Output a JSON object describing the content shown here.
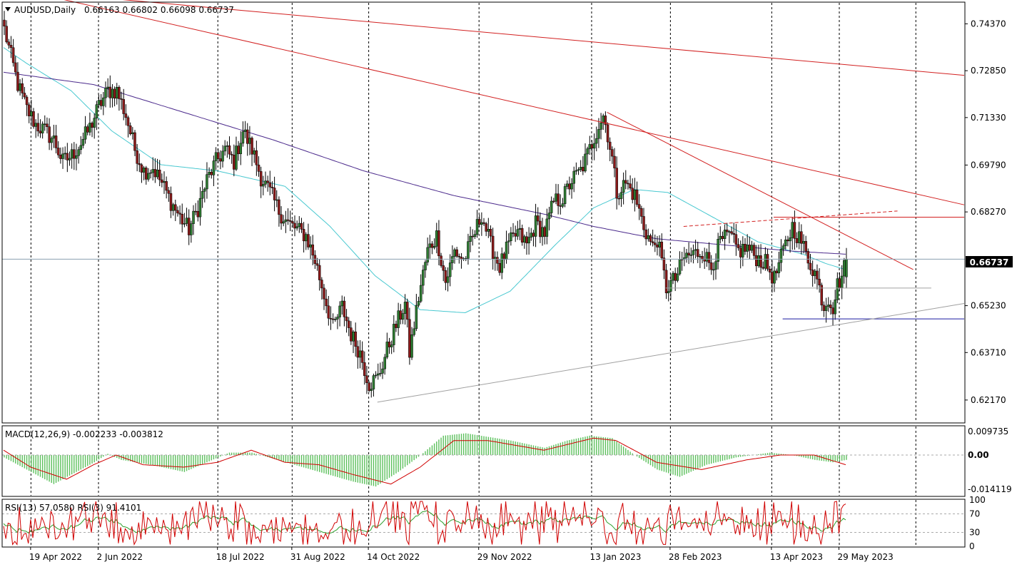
{
  "colors": {
    "bull": "#2e7d32",
    "bear": "#8b1a1a",
    "ma_fast": "#48c8d0",
    "ma_slow": "#4b2a8c",
    "trend_red": "#d22020",
    "support_blue": "#1a1aa0",
    "gray_line": "#a0a0a0",
    "macd_hist": "#5cc05c",
    "macd_signal": "#d00000",
    "rsi_fast": "#d00000",
    "rsi_slow": "#2ea02e",
    "grid": "#000000",
    "price_tag_bg": "#000000"
  },
  "header": {
    "symbol": "AUDUSD,Daily",
    "ohlc": "0.66163 0.66802 0.66098 0.66737",
    "macd_label": "MACD(12,26,9) -0.002233 -0.003812",
    "rsi_label": "RSI(13) 57.0580  RSI(3) 91.4101"
  },
  "price_tag": "0.66737",
  "chart_data": [
    {
      "type": "candlestick",
      "title": "AUDUSD,Daily",
      "x_tick_labels": [
        "19 Apr 2022",
        "2 Jun 2022",
        "18 Jul 2022",
        "31 Aug 2022",
        "14 Oct 2022",
        "29 Nov 2022",
        "13 Jan 2023",
        "28 Feb 2023",
        "13 Apr 2023",
        "29 May 2023"
      ],
      "y_tick_labels": [
        "0.74370",
        "0.72850",
        "0.71330",
        "0.69790",
        "0.68270",
        "0.66737",
        "0.65230",
        "0.63710",
        "0.62170"
      ],
      "ylim": [
        0.6145,
        0.7505
      ],
      "last_close": 0.66737,
      "close_anchors": [
        [
          0,
          0.742
        ],
        [
          3,
          0.733
        ],
        [
          6,
          0.724
        ],
        [
          10,
          0.716
        ],
        [
          14,
          0.711
        ],
        [
          18,
          0.709
        ],
        [
          22,
          0.706
        ],
        [
          26,
          0.699
        ],
        [
          30,
          0.701
        ],
        [
          34,
          0.705
        ],
        [
          38,
          0.71
        ],
        [
          42,
          0.717
        ],
        [
          46,
          0.722
        ],
        [
          50,
          0.722
        ],
        [
          54,
          0.714
        ],
        [
          58,
          0.703
        ],
        [
          62,
          0.696
        ],
        [
          66,
          0.697
        ],
        [
          70,
          0.692
        ],
        [
          74,
          0.686
        ],
        [
          78,
          0.681
        ],
        [
          82,
          0.677
        ],
        [
          86,
          0.684
        ],
        [
          90,
          0.693
        ],
        [
          94,
          0.699
        ],
        [
          98,
          0.703
        ],
        [
          102,
          0.699
        ],
        [
          106,
          0.709
        ],
        [
          110,
          0.703
        ],
        [
          114,
          0.694
        ],
        [
          118,
          0.689
        ],
        [
          122,
          0.683
        ],
        [
          126,
          0.679
        ],
        [
          130,
          0.677
        ],
        [
          134,
          0.675
        ],
        [
          138,
          0.667
        ],
        [
          142,
          0.656
        ],
        [
          146,
          0.645
        ],
        [
          150,
          0.652
        ],
        [
          154,
          0.643
        ],
        [
          158,
          0.637
        ],
        [
          162,
          0.627
        ],
        [
          166,
          0.629
        ],
        [
          170,
          0.638
        ],
        [
          174,
          0.646
        ],
        [
          178,
          0.653
        ],
        [
          180,
          0.637
        ],
        [
          184,
          0.655
        ],
        [
          188,
          0.67
        ],
        [
          192,
          0.675
        ],
        [
          196,
          0.66
        ],
        [
          200,
          0.67
        ],
        [
          204,
          0.667
        ],
        [
          208,
          0.674
        ],
        [
          212,
          0.682
        ],
        [
          216,
          0.672
        ],
        [
          220,
          0.665
        ],
        [
          224,
          0.672
        ],
        [
          228,
          0.676
        ],
        [
          232,
          0.672
        ],
        [
          236,
          0.679
        ],
        [
          240,
          0.676
        ],
        [
          244,
          0.686
        ],
        [
          248,
          0.687
        ],
        [
          252,
          0.693
        ],
        [
          256,
          0.696
        ],
        [
          260,
          0.703
        ],
        [
          264,
          0.711
        ],
        [
          266,
          0.714
        ],
        [
          268,
          0.708
        ],
        [
          270,
          0.7
        ],
        [
          272,
          0.689
        ],
        [
          276,
          0.692
        ],
        [
          280,
          0.688
        ],
        [
          284,
          0.678
        ],
        [
          288,
          0.671
        ],
        [
          290,
          0.674
        ],
        [
          294,
          0.658
        ],
        [
          298,
          0.661
        ],
        [
          302,
          0.668
        ],
        [
          306,
          0.669
        ],
        [
          310,
          0.67
        ],
        [
          314,
          0.665
        ],
        [
          318,
          0.673
        ],
        [
          322,
          0.675
        ],
        [
          326,
          0.67
        ],
        [
          330,
          0.671
        ],
        [
          334,
          0.668
        ],
        [
          338,
          0.666
        ],
        [
          342,
          0.661
        ],
        [
          346,
          0.67
        ],
        [
          350,
          0.678
        ],
        [
          354,
          0.673
        ],
        [
          356,
          0.669
        ],
        [
          360,
          0.663
        ],
        [
          362,
          0.658
        ],
        [
          364,
          0.652
        ],
        [
          366,
          0.655
        ],
        [
          368,
          0.652
        ],
        [
          370,
          0.659
        ],
        [
          372,
          0.662
        ],
        [
          374,
          0.667
        ]
      ],
      "ma_fast_anchors": [
        [
          0,
          0.736
        ],
        [
          10,
          0.731
        ],
        [
          30,
          0.722
        ],
        [
          48,
          0.709
        ],
        [
          70,
          0.698
        ],
        [
          95,
          0.696
        ],
        [
          125,
          0.691
        ],
        [
          145,
          0.678
        ],
        [
          165,
          0.662
        ],
        [
          185,
          0.651
        ],
        [
          205,
          0.65
        ],
        [
          225,
          0.657
        ],
        [
          245,
          0.672
        ],
        [
          262,
          0.684
        ],
        [
          280,
          0.69
        ],
        [
          295,
          0.689
        ],
        [
          315,
          0.681
        ],
        [
          335,
          0.673
        ],
        [
          355,
          0.669
        ],
        [
          365,
          0.666
        ],
        [
          374,
          0.664
        ]
      ],
      "ma_slow_anchors": [
        [
          0,
          0.728
        ],
        [
          40,
          0.724
        ],
        [
          80,
          0.715
        ],
        [
          120,
          0.706
        ],
        [
          160,
          0.696
        ],
        [
          200,
          0.688
        ],
        [
          240,
          0.682
        ],
        [
          262,
          0.678
        ],
        [
          290,
          0.674
        ],
        [
          320,
          0.672
        ],
        [
          350,
          0.67
        ],
        [
          374,
          0.669
        ]
      ],
      "trendlines": [
        {
          "style": "solid-red",
          "from": [
            0,
            0.755
          ],
          "to": [
            444,
            0.727
          ]
        },
        {
          "style": "solid-red",
          "from": [
            0,
            0.756
          ],
          "to": [
            444,
            0.685
          ]
        },
        {
          "style": "solid-red",
          "from": [
            268,
            0.715
          ],
          "to": [
            404,
            0.664
          ]
        },
        {
          "style": "dashed-red",
          "from": [
            302,
            0.678
          ],
          "to": [
            397,
            0.683
          ]
        },
        {
          "style": "solid-red",
          "from": [
            342,
            0.681
          ],
          "to": [
            434,
            0.681
          ]
        },
        {
          "style": "solid-gray",
          "from": [
            294,
            0.658
          ],
          "to": [
            412,
            0.658
          ]
        },
        {
          "style": "solid-blue",
          "from": [
            346,
            0.648
          ],
          "to": [
            444,
            0.648
          ]
        },
        {
          "style": "solid-gray",
          "from": [
            166,
            0.621
          ],
          "to": [
            444,
            0.653
          ]
        }
      ]
    },
    {
      "type": "macd",
      "title": "MACD(12,26,9)",
      "y_tick_labels": [
        "0.009735",
        "0.00",
        "-0.014119"
      ],
      "ylim": [
        -0.0168,
        0.0118
      ],
      "hist_anchors": [
        [
          0,
          -0.001
        ],
        [
          10,
          -0.006
        ],
        [
          22,
          -0.012
        ],
        [
          30,
          -0.008
        ],
        [
          40,
          -0.003
        ],
        [
          46,
          0.0005
        ],
        [
          52,
          -0.002
        ],
        [
          65,
          -0.004
        ],
        [
          80,
          -0.007
        ],
        [
          90,
          -0.003
        ],
        [
          100,
          0.001
        ],
        [
          110,
          0.001
        ],
        [
          125,
          -0.003
        ],
        [
          140,
          -0.007
        ],
        [
          155,
          -0.011
        ],
        [
          165,
          -0.013
        ],
        [
          175,
          -0.007
        ],
        [
          185,
          0.0
        ],
        [
          195,
          0.008
        ],
        [
          205,
          0.009
        ],
        [
          225,
          0.006
        ],
        [
          240,
          0.003
        ],
        [
          250,
          0.006
        ],
        [
          260,
          0.008
        ],
        [
          270,
          0.007
        ],
        [
          280,
          0.0
        ],
        [
          290,
          -0.006
        ],
        [
          300,
          -0.009
        ],
        [
          312,
          -0.004
        ],
        [
          325,
          -0.001
        ],
        [
          340,
          0.001
        ],
        [
          350,
          0.0
        ],
        [
          360,
          -0.002
        ],
        [
          368,
          -0.003
        ],
        [
          374,
          -0.002
        ]
      ],
      "signal_anchors": [
        [
          0,
          0.002
        ],
        [
          12,
          -0.005
        ],
        [
          28,
          -0.01
        ],
        [
          40,
          -0.004
        ],
        [
          50,
          0.0
        ],
        [
          62,
          -0.004
        ],
        [
          80,
          -0.005
        ],
        [
          95,
          -0.003
        ],
        [
          110,
          0.002
        ],
        [
          125,
          -0.003
        ],
        [
          140,
          -0.004
        ],
        [
          155,
          -0.008
        ],
        [
          172,
          -0.012
        ],
        [
          185,
          -0.005
        ],
        [
          200,
          0.006
        ],
        [
          215,
          0.006
        ],
        [
          240,
          0.002
        ],
        [
          262,
          0.007
        ],
        [
          272,
          0.006
        ],
        [
          290,
          -0.003
        ],
        [
          310,
          -0.006
        ],
        [
          330,
          -0.002
        ],
        [
          345,
          0.0
        ],
        [
          360,
          0.0
        ],
        [
          374,
          -0.004
        ]
      ]
    },
    {
      "type": "rsi",
      "title": "RSI(13) 57.0580  RSI(3) 91.4101",
      "y_tick_labels": [
        "100",
        "70",
        "30",
        "0"
      ],
      "ylim": [
        0,
        100
      ],
      "levels": [
        70,
        30
      ],
      "rsi13_last": 57.058,
      "rsi3_last": 91.4101
    }
  ]
}
